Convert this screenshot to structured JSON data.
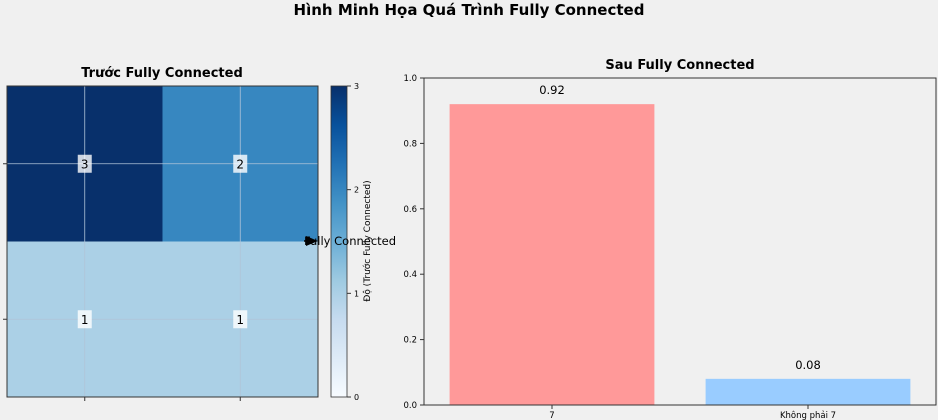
{
  "figure": {
    "title": "Hình Minh Họa Quá Trình Fully Connected"
  },
  "chart_data": [
    {
      "type": "heatmap",
      "title": "Trước Fully Connected",
      "values": [
        [
          3,
          2
        ],
        [
          1,
          1
        ]
      ],
      "colormap": "Blues",
      "vmin": 0,
      "vmax": 3,
      "colorbar_label": "Độ (Trước Fully Connected)",
      "colorbar_ticks": [
        "0",
        "1",
        "2",
        "3"
      ],
      "grid": true
    },
    {
      "type": "bar",
      "title": "Sau Fully Connected",
      "categories": [
        "7",
        "Không phải 7"
      ],
      "values": [
        0.92,
        0.08
      ],
      "value_labels": [
        "0.92",
        "0.08"
      ],
      "colors": [
        "#ff9999",
        "#99ccff"
      ],
      "ylim": [
        0,
        1.0
      ],
      "yticks": [
        "0.0",
        "0.2",
        "0.4",
        "0.6",
        "0.8",
        "1.0"
      ],
      "grid": false
    }
  ],
  "annotation": {
    "text": "Fully Connected",
    "color": "#000000"
  }
}
